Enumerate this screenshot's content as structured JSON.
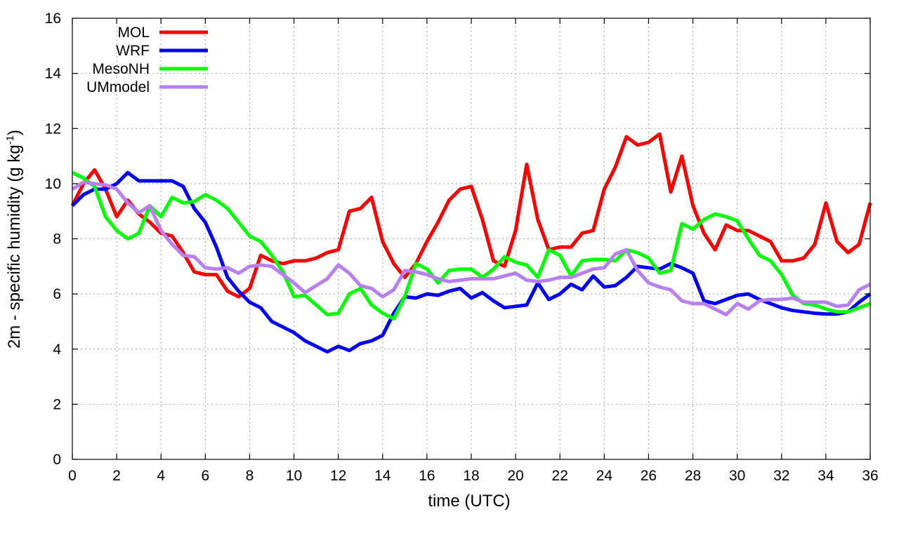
{
  "chart_data": {
    "type": "line",
    "xlabel": "time (UTC)",
    "ylabel": "2m - specific humidity (g kg",
    "ylabel_sup": "-1",
    "ylabel_suffix": ")",
    "xlim": [
      0,
      36
    ],
    "ylim": [
      0,
      16
    ],
    "xticks": [
      "0",
      "2",
      "4",
      "6",
      "8",
      "10",
      "12",
      "14",
      "16",
      "18",
      "20",
      "22",
      "24",
      "26",
      "28",
      "30",
      "32",
      "34",
      "36"
    ],
    "yticks": [
      "0",
      "2",
      "4",
      "6",
      "8",
      "10",
      "12",
      "14",
      "16"
    ],
    "grid": true,
    "legend_position": "top-left",
    "series": [
      {
        "name": "MOL",
        "color": "#ff0000",
        "x": [
          0,
          0.5,
          1,
          1.5,
          2,
          2.5,
          3,
          3.5,
          4,
          4.5,
          5,
          5.5,
          6,
          6.5,
          7,
          7.5,
          8,
          8.5,
          9,
          9.5,
          10,
          10.5,
          11,
          11.5,
          12,
          12.5,
          13,
          13.5,
          14,
          14.5,
          15,
          15.5,
          16,
          16.5,
          17,
          17.5,
          18,
          18.5,
          19,
          19.5,
          20,
          20.5,
          21,
          21.5,
          22,
          22.5,
          23,
          23.5,
          24,
          24.5,
          25,
          25.5,
          26,
          26.5,
          27,
          27.5,
          28,
          28.5,
          29,
          29.5,
          30,
          30.5,
          31,
          31.5,
          32,
          32.5,
          33,
          33.5,
          34,
          34.5,
          35,
          35.5,
          36
        ],
        "y": [
          9.2,
          10.0,
          10.5,
          9.8,
          8.8,
          9.4,
          8.9,
          8.6,
          8.2,
          8.1,
          7.5,
          6.8,
          6.7,
          6.7,
          6.1,
          5.9,
          6.2,
          7.4,
          7.2,
          7.1,
          7.2,
          7.2,
          7.3,
          7.5,
          7.6,
          9.0,
          9.1,
          9.5,
          7.9,
          7.1,
          6.6,
          7.1,
          7.9,
          8.6,
          9.4,
          9.8,
          9.9,
          8.7,
          7.2,
          7.0,
          8.3,
          10.7,
          8.7,
          7.6,
          7.7,
          7.7,
          8.2,
          8.3,
          9.8,
          10.6,
          11.7,
          11.4,
          11.5,
          11.8,
          9.7,
          11.0,
          9.2,
          8.2,
          7.6,
          8.5,
          8.3,
          8.3,
          8.1,
          7.9,
          7.2,
          7.2,
          7.3,
          7.8,
          9.3,
          7.9,
          7.5,
          7.8,
          9.3
        ]
      },
      {
        "name": "WRF",
        "color": "#0000ff",
        "x": [
          0,
          0.5,
          1,
          1.5,
          2,
          2.5,
          3,
          3.5,
          4,
          4.5,
          5,
          5.5,
          6,
          6.5,
          7,
          7.5,
          8,
          8.5,
          9,
          9.5,
          10,
          10.5,
          11,
          11.5,
          12,
          12.5,
          13,
          13.5,
          14,
          14.5,
          15,
          15.5,
          16,
          16.5,
          17,
          17.5,
          18,
          18.5,
          19,
          19.5,
          20,
          20.5,
          21,
          21.5,
          22,
          22.5,
          23,
          23.5,
          24,
          24.5,
          25,
          25.5,
          26,
          26.5,
          27,
          27.5,
          28,
          28.5,
          29,
          29.5,
          30,
          30.5,
          31,
          31.5,
          32,
          32.5,
          33,
          33.5,
          34,
          34.5,
          35,
          35.5,
          36
        ],
        "y": [
          9.2,
          9.6,
          9.8,
          9.8,
          10.0,
          10.4,
          10.1,
          10.1,
          10.1,
          10.1,
          9.9,
          9.1,
          8.6,
          7.7,
          6.6,
          6.1,
          5.7,
          5.5,
          5.0,
          4.8,
          4.6,
          4.3,
          4.1,
          3.9,
          4.1,
          3.95,
          4.2,
          4.3,
          4.5,
          5.3,
          5.9,
          5.85,
          6.0,
          5.95,
          6.1,
          6.2,
          5.85,
          6.05,
          5.75,
          5.5,
          5.55,
          5.6,
          6.4,
          5.8,
          6.0,
          6.35,
          6.15,
          6.65,
          6.25,
          6.3,
          6.6,
          7.0,
          6.95,
          6.9,
          7.1,
          6.95,
          6.75,
          5.75,
          5.65,
          5.8,
          5.95,
          6.0,
          5.8,
          5.65,
          5.5,
          5.4,
          5.35,
          5.3,
          5.27,
          5.27,
          5.35,
          5.7,
          6.0
        ]
      },
      {
        "name": "MesoNH",
        "color": "#00ff00",
        "x": [
          0,
          0.5,
          1,
          1.5,
          2,
          2.5,
          3,
          3.5,
          4,
          4.5,
          5,
          5.5,
          6,
          6.5,
          7,
          7.5,
          8,
          8.5,
          9,
          9.5,
          10,
          10.5,
          11,
          11.5,
          12,
          12.5,
          13,
          13.5,
          14,
          14.5,
          15,
          15.5,
          16,
          16.5,
          17,
          17.5,
          18,
          18.5,
          19,
          19.5,
          20,
          20.5,
          21,
          21.5,
          22,
          22.5,
          23,
          23.5,
          24,
          24.5,
          25,
          25.5,
          26,
          26.5,
          27,
          27.5,
          28,
          28.5,
          29,
          29.5,
          30,
          30.5,
          31,
          31.5,
          32,
          32.5,
          33,
          33.5,
          34,
          34.5,
          35,
          35.5,
          36
        ],
        "y": [
          10.4,
          10.2,
          9.9,
          8.8,
          8.3,
          8.0,
          8.2,
          9.2,
          8.8,
          9.5,
          9.3,
          9.35,
          9.6,
          9.4,
          9.1,
          8.6,
          8.1,
          7.9,
          7.4,
          6.8,
          5.9,
          5.95,
          5.6,
          5.25,
          5.3,
          6.0,
          6.2,
          5.6,
          5.3,
          5.1,
          5.9,
          7.1,
          6.9,
          6.4,
          6.85,
          6.9,
          6.9,
          6.6,
          6.9,
          7.35,
          7.15,
          7.05,
          6.6,
          7.6,
          7.4,
          6.65,
          7.2,
          7.25,
          7.25,
          7.2,
          7.6,
          7.5,
          7.3,
          6.75,
          6.85,
          8.55,
          8.35,
          8.7,
          8.9,
          8.8,
          8.65,
          8.0,
          7.4,
          7.2,
          6.7,
          5.95,
          5.65,
          5.6,
          5.45,
          5.35,
          5.35,
          5.5,
          5.65
        ]
      },
      {
        "name": "UMmodel",
        "color": "#b77ff0",
        "x": [
          0,
          0.5,
          1,
          1.5,
          2,
          2.5,
          3,
          3.5,
          4,
          4.5,
          5,
          5.5,
          6,
          6.5,
          7,
          7.5,
          8,
          8.5,
          9,
          9.5,
          10,
          10.5,
          11,
          11.5,
          12,
          12.5,
          13,
          13.5,
          14,
          14.5,
          15,
          15.5,
          16,
          16.5,
          17,
          17.5,
          18,
          18.5,
          19,
          19.5,
          20,
          20.5,
          21,
          21.5,
          22,
          22.5,
          23,
          23.5,
          24,
          24.5,
          25,
          25.5,
          26,
          26.5,
          27,
          27.5,
          28,
          28.5,
          29,
          29.5,
          30,
          30.5,
          31,
          31.5,
          32,
          32.5,
          33,
          33.5,
          34,
          34.5,
          35,
          35.5,
          36
        ],
        "y": [
          9.8,
          10.05,
          10.0,
          9.95,
          9.8,
          9.3,
          8.95,
          9.2,
          8.3,
          7.8,
          7.4,
          7.35,
          6.95,
          6.9,
          6.95,
          6.75,
          7.0,
          7.05,
          7.0,
          6.7,
          6.4,
          6.05,
          6.3,
          6.55,
          7.05,
          6.75,
          6.3,
          6.2,
          5.9,
          6.15,
          6.85,
          6.8,
          6.7,
          6.55,
          6.45,
          6.5,
          6.55,
          6.55,
          6.55,
          6.65,
          6.75,
          6.5,
          6.45,
          6.5,
          6.6,
          6.6,
          6.75,
          6.9,
          6.95,
          7.45,
          7.6,
          6.85,
          6.4,
          6.25,
          6.15,
          5.75,
          5.65,
          5.65,
          5.45,
          5.25,
          5.65,
          5.45,
          5.75,
          5.8,
          5.8,
          5.85,
          5.7,
          5.7,
          5.7,
          5.55,
          5.6,
          6.15,
          6.35
        ]
      }
    ]
  }
}
